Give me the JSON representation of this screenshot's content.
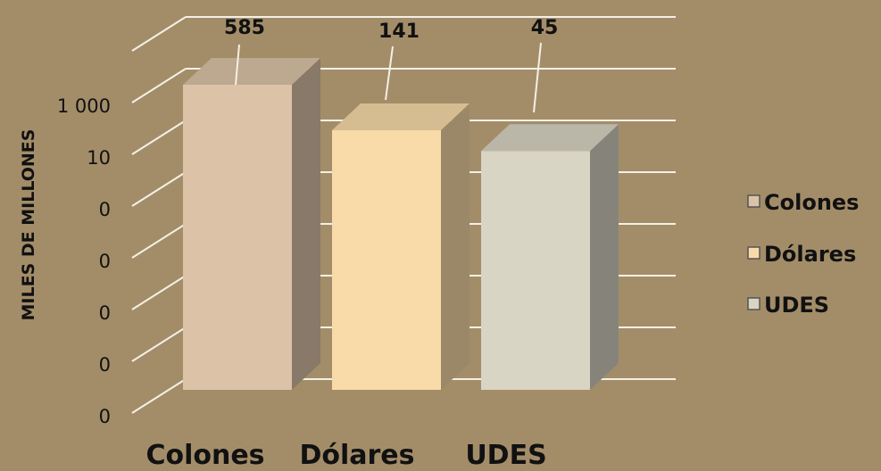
{
  "chart_data": {
    "type": "bar",
    "categories": [
      "Colones",
      "Dólares",
      "UDES"
    ],
    "values": [
      585,
      141,
      45
    ],
    "data_labels": [
      "585",
      "141",
      "45"
    ],
    "ylabel": "MILES DE MILLONES",
    "y_tick_labels": [
      "0",
      "0",
      "0",
      "0",
      "0",
      "10",
      "1 000"
    ],
    "y_scale": "log",
    "grid": true,
    "legend": {
      "position": "right",
      "entries": [
        "Colones",
        "Dólares",
        "UDES"
      ]
    },
    "colors": {
      "Colones": "#dcc3a8",
      "Dólares": "#f9dba9",
      "UDES": "#d8d5c4",
      "background": "#a38d69",
      "gridline": "#f4f0e6"
    }
  }
}
